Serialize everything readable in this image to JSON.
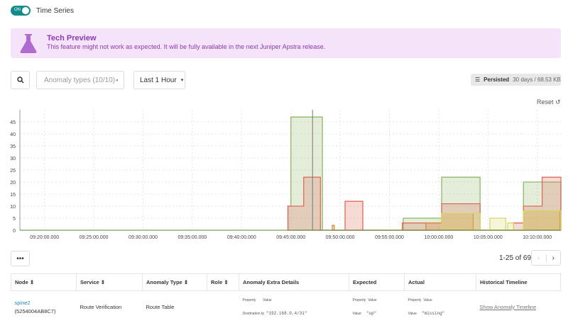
{
  "header": {
    "toggle": "ON",
    "title": "Time Series"
  },
  "banner": {
    "icon": "flask-icon",
    "title": "Tech Preview",
    "message": "This feature might not work as expected. It will be fully available in the next Juniper Apstra release.",
    "color": "#8c3bb0"
  },
  "filters": {
    "anomaly_types": "Anomaly types (10/10)",
    "range": "Last 1 Hour"
  },
  "persisted": {
    "label": "Persisted",
    "value": "30 days / 68.53 KB"
  },
  "reset": "Reset",
  "pagination": {
    "text": "1-25 of 69"
  },
  "chart_data": {
    "type": "area",
    "y_ticks": [
      0,
      5,
      10,
      15,
      20,
      25,
      30,
      35,
      40,
      45
    ],
    "ylim": [
      0,
      50
    ],
    "x_ticks": [
      "09:20:00.000",
      "09:25:00.000",
      "09:30:00.000",
      "09:35:00.000",
      "09:40:00.000",
      "09:45:00.000",
      "09:50:00.000",
      "09:55:00.000",
      "10:00:00.000",
      "10:05:00.000",
      "10:10:00.000"
    ],
    "xlim": [
      "09:17:30",
      "10:12:24"
    ],
    "grid": true,
    "cursor": "09:47:12",
    "series": [
      {
        "color": "#8fb86a",
        "steps": [
          [
            "09:44:42",
            10
          ],
          [
            "09:45:00",
            47
          ],
          [
            "09:48:12",
            0
          ],
          [
            "09:56:24",
            5
          ],
          [
            "10:00:18",
            22
          ],
          [
            "10:04:12",
            0
          ],
          [
            "10:08:36",
            20
          ],
          [
            "10:12:24",
            0
          ]
        ]
      },
      {
        "color": "#e06b5a",
        "steps": [
          [
            "09:44:42",
            10
          ],
          [
            "09:46:18",
            22
          ],
          [
            "09:48:00",
            0
          ],
          [
            "09:50:30",
            12
          ],
          [
            "09:52:18",
            0
          ],
          [
            "09:56:18",
            3
          ],
          [
            "10:00:18",
            11
          ],
          [
            "10:04:12",
            0
          ],
          [
            "10:07:36",
            3
          ],
          [
            "10:08:36",
            10
          ],
          [
            "10:10:30",
            22
          ],
          [
            "10:12:24",
            0
          ]
        ]
      },
      {
        "color": "#d98a3a",
        "steps": [
          [
            "09:49:12",
            2
          ],
          [
            "09:49:24",
            0
          ],
          [
            "09:58:42",
            3
          ],
          [
            "10:00:18",
            7
          ],
          [
            "10:03:30",
            0
          ],
          [
            "10:08:36",
            8
          ],
          [
            "10:12:18",
            0
          ]
        ]
      },
      {
        "color": "#d6d86a",
        "steps": [
          [
            "10:00:18",
            7
          ],
          [
            "10:04:12",
            0
          ],
          [
            "10:05:12",
            5
          ],
          [
            "10:06:48",
            0
          ],
          [
            "10:07:00",
            3
          ],
          [
            "10:07:36",
            0
          ],
          [
            "10:08:36",
            8
          ],
          [
            "10:12:24",
            0
          ]
        ]
      }
    ]
  },
  "table": {
    "columns": [
      "Node",
      "Service",
      "Anomaly Type",
      "Role",
      "Anomaly Extra Details",
      "Expected",
      "Actual",
      "Historical Timeline"
    ],
    "rows": [
      {
        "node": "spine2",
        "node_id": "(5254004AB8C7)",
        "service": "Route Verification",
        "anomaly_type": "Route Table",
        "role": "",
        "extra": {
          "h1": "Property",
          "h2": "Value",
          "prop": "Destination Ip",
          "val": "\"192.168.0.4/31\""
        },
        "expected": {
          "h1": "Property",
          "h2": "Value",
          "prop": "Value",
          "val": "\"up\""
        },
        "actual": {
          "h1": "Property",
          "h2": "Value",
          "prop": "Value",
          "val": "\"missing\""
        },
        "timeline": "Show Anomaly Timeline"
      }
    ]
  }
}
